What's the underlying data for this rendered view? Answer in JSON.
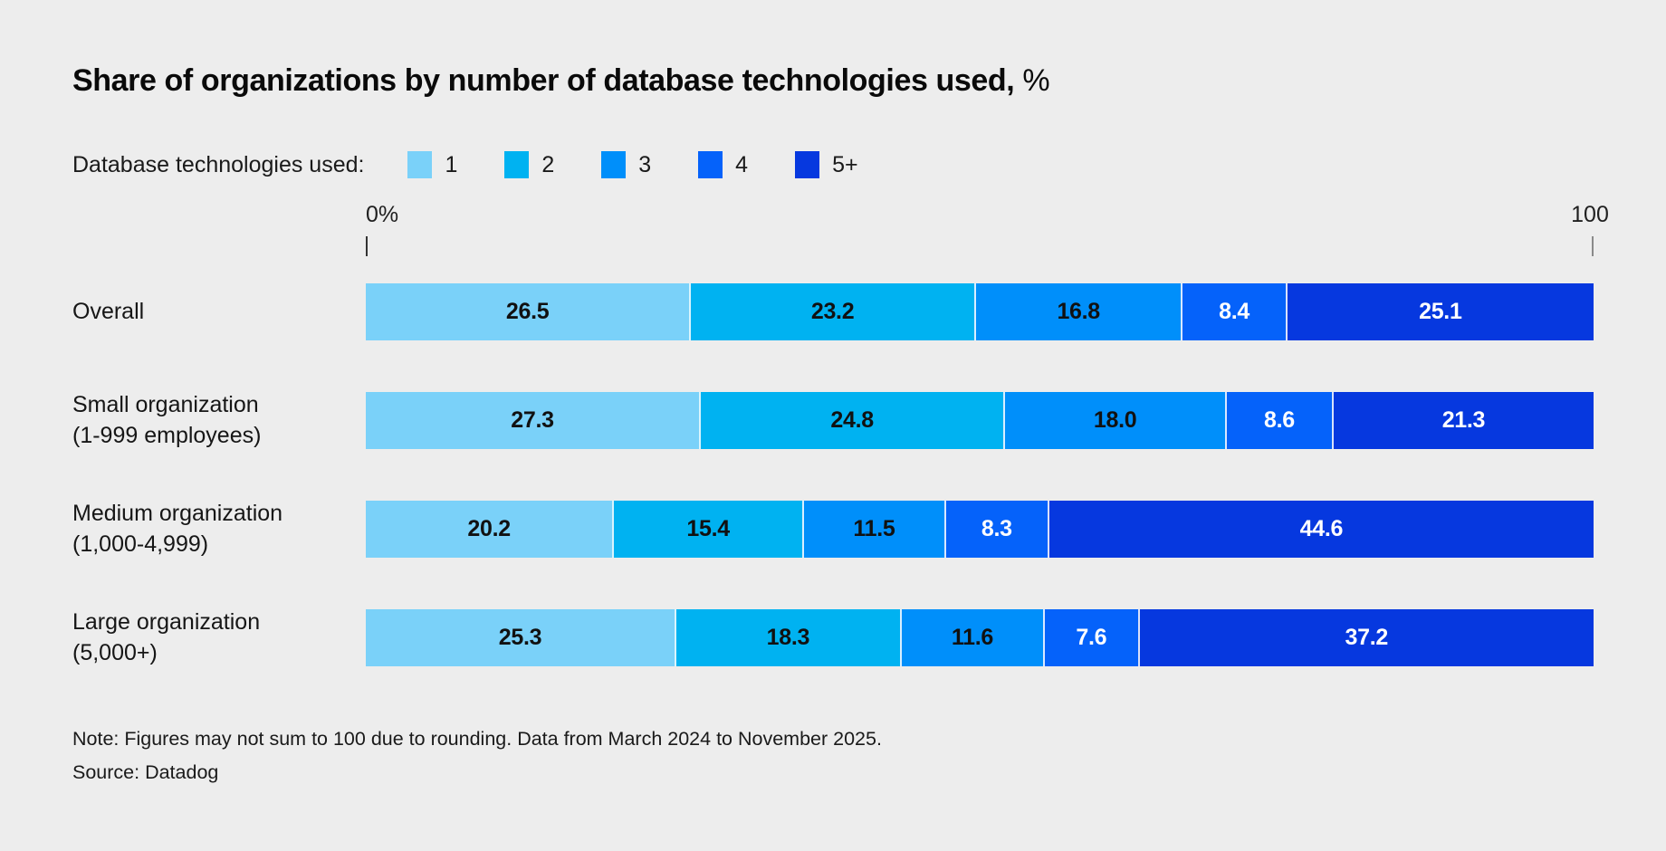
{
  "title": {
    "main": "Share of organizations by number of database technologies used,",
    "suffix": " %"
  },
  "legend": {
    "label": "Database technologies used:"
  },
  "axis": {
    "left_label": "0%",
    "right_label": "100"
  },
  "colors": {
    "background": "#ededed",
    "tech_1": "#7ad1f9",
    "tech_2": "#00b2f1",
    "tech_3": "#008ffa",
    "tech_4": "#0562fa",
    "tech_5plus": "#0638df"
  },
  "chart_data": {
    "type": "bar",
    "variant": "horizontal-stacked",
    "title": "Share of organizations by number of database technologies used, %",
    "xlabel": "",
    "ylabel": "",
    "xlim": [
      0,
      100
    ],
    "grid": false,
    "legend_position": "top",
    "categories": [
      "Overall",
      "Small organization (1-999 employees)",
      "Medium organization (1,000-4,999)",
      "Large organization (5,000+)"
    ],
    "category_lines": [
      [
        "Overall"
      ],
      [
        "Small organization",
        "(1-999 employees)"
      ],
      [
        "Medium organization",
        "(1,000-4,999)"
      ],
      [
        "Large organization",
        "(5,000+)"
      ]
    ],
    "series": [
      {
        "name": "1",
        "color": "#7ad1f9",
        "label_color": "#111111",
        "values": [
          26.5,
          27.3,
          20.2,
          25.3
        ],
        "labels": [
          "26.5",
          "27.3",
          "20.2",
          "25.3"
        ]
      },
      {
        "name": "2",
        "color": "#00b2f1",
        "label_color": "#111111",
        "values": [
          23.2,
          24.8,
          15.4,
          18.3
        ],
        "labels": [
          "23.2",
          "24.8",
          "15.4",
          "18.3"
        ]
      },
      {
        "name": "3",
        "color": "#008ffa",
        "label_color": "#111111",
        "values": [
          16.8,
          18.0,
          11.5,
          11.6
        ],
        "labels": [
          "16.8",
          "18.0",
          "11.5",
          "11.6"
        ]
      },
      {
        "name": "4",
        "color": "#0562fa",
        "label_color": "#ffffff",
        "values": [
          8.4,
          8.6,
          8.3,
          7.6
        ],
        "labels": [
          "8.4",
          "8.6",
          "8.3",
          "7.6"
        ]
      },
      {
        "name": "5+",
        "color": "#0638df",
        "label_color": "#ffffff",
        "values": [
          25.1,
          21.3,
          44.6,
          37.2
        ],
        "labels": [
          "25.1",
          "21.3",
          "44.6",
          "37.2"
        ]
      }
    ]
  },
  "footer": {
    "note": "Note: Figures may not sum to 100 due to rounding. Data from March 2024 to November 2025.",
    "source": "Source: Datadog"
  }
}
